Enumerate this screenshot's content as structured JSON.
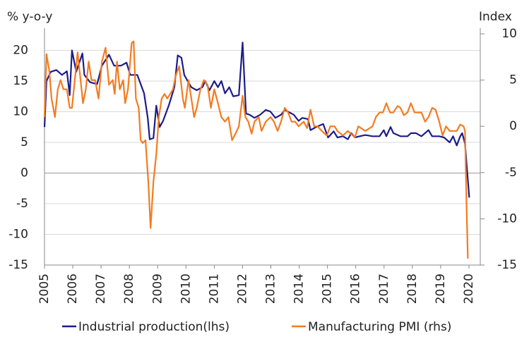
{
  "chart_data": {
    "type": "line",
    "y_label": "% y-o-y",
    "y2_label": "Index",
    "xlim": [
      2005,
      2020.4
    ],
    "xticks": [
      2005,
      2006,
      2007,
      2008,
      2009,
      2010,
      2011,
      2012,
      2013,
      2014,
      2015,
      2016,
      2017,
      2018,
      2019,
      2020
    ],
    "ylim": [
      -15,
      22.7
    ],
    "yticks": [
      20,
      15,
      10,
      5,
      0,
      -5,
      -10,
      -15
    ],
    "y2lim": [
      -15,
      10
    ],
    "y2ticks": [
      10,
      5,
      0,
      -5,
      -10,
      -15
    ],
    "grid": true,
    "legend": "bottom",
    "series": [
      {
        "name": "Industrial production(lhs)",
        "color": "#1c1c8c",
        "x": [
          2005.0,
          2005.07,
          2005.22,
          2005.42,
          2005.62,
          2005.79,
          2005.89,
          2005.97,
          2006.12,
          2006.34,
          2006.41,
          2006.61,
          2006.86,
          2007.03,
          2007.28,
          2007.46,
          2007.7,
          2007.9,
          2008.03,
          2008.28,
          2008.52,
          2008.65,
          2008.72,
          2008.85,
          2008.95,
          2009.07,
          2009.19,
          2009.39,
          2009.59,
          2009.71,
          2009.84,
          2009.94,
          2010.06,
          2010.19,
          2010.38,
          2010.58,
          2010.68,
          2010.83,
          2011.0,
          2011.13,
          2011.25,
          2011.38,
          2011.53,
          2011.67,
          2011.87,
          2012.0,
          2012.12,
          2012.25,
          2012.42,
          2012.62,
          2012.82,
          2012.99,
          2013.16,
          2013.36,
          2013.49,
          2013.61,
          2013.81,
          2013.98,
          2014.11,
          2014.31,
          2014.4,
          2014.6,
          2014.85,
          2015.02,
          2015.22,
          2015.35,
          2015.55,
          2015.72,
          2015.84,
          2015.97,
          2016.14,
          2016.34,
          2016.59,
          2016.84,
          2016.99,
          2017.08,
          2017.23,
          2017.33,
          2017.58,
          2017.83,
          2017.95,
          2018.13,
          2018.32,
          2018.57,
          2018.7,
          2018.95,
          2019.12,
          2019.32,
          2019.44,
          2019.57,
          2019.69,
          2019.76,
          2019.86,
          2020.01
        ],
        "values": [
          7.5,
          15,
          16.5,
          16.8,
          16,
          16.6,
          12.7,
          20,
          16.5,
          19.5,
          16,
          14.8,
          14.5,
          17.5,
          19.3,
          17.5,
          17.5,
          18,
          16,
          16,
          13,
          9,
          5.5,
          5.7,
          11,
          7.5,
          8.5,
          11,
          14,
          19.2,
          18.8,
          16,
          15,
          14,
          13.5,
          14,
          15,
          13.5,
          15,
          14,
          15,
          13,
          14,
          12.5,
          12.7,
          21.3,
          9.7,
          9.5,
          9,
          9.5,
          10.3,
          10,
          9,
          9.5,
          10.3,
          10,
          9.5,
          8.5,
          9,
          8.8,
          7,
          7.5,
          8,
          5.8,
          6.8,
          5.8,
          6,
          5.5,
          6.5,
          5.8,
          6,
          6.2,
          6,
          6,
          7,
          6,
          7.5,
          6.5,
          6,
          6,
          6.5,
          6.5,
          6,
          7,
          6,
          6,
          5.8,
          5,
          6,
          4.5,
          6,
          6.5,
          4.8,
          -4
        ]
      },
      {
        "name": "Manufacturing PMI (rhs)",
        "color": "#f47b20",
        "axis": "y2",
        "x": [
          2005.0,
          2005.07,
          2005.17,
          2005.25,
          2005.37,
          2005.47,
          2005.57,
          2005.67,
          2005.79,
          2005.89,
          2005.97,
          2006.07,
          2006.17,
          2006.24,
          2006.36,
          2006.46,
          2006.56,
          2006.66,
          2006.79,
          2006.91,
          2007.03,
          2007.16,
          2007.28,
          2007.41,
          2007.48,
          2007.56,
          2007.66,
          2007.78,
          2007.85,
          2007.95,
          2008.08,
          2008.15,
          2008.23,
          2008.33,
          2008.4,
          2008.47,
          2008.57,
          2008.67,
          2008.75,
          2008.85,
          2008.95,
          2009.04,
          2009.14,
          2009.24,
          2009.34,
          2009.44,
          2009.54,
          2009.64,
          2009.76,
          2009.89,
          2009.96,
          2010.09,
          2010.19,
          2010.29,
          2010.38,
          2010.51,
          2010.63,
          2010.76,
          2010.88,
          2011.0,
          2011.13,
          2011.25,
          2011.38,
          2011.5,
          2011.63,
          2011.75,
          2011.87,
          2012.0,
          2012.1,
          2012.2,
          2012.32,
          2012.42,
          2012.57,
          2012.67,
          2012.82,
          2012.99,
          2013.11,
          2013.24,
          2013.36,
          2013.49,
          2013.61,
          2013.73,
          2013.86,
          2013.98,
          2014.16,
          2014.28,
          2014.4,
          2014.53,
          2014.65,
          2014.8,
          2014.98,
          2015.1,
          2015.25,
          2015.35,
          2015.55,
          2015.72,
          2015.97,
          2016.09,
          2016.34,
          2016.59,
          2016.71,
          2016.84,
          2016.96,
          2017.08,
          2017.21,
          2017.33,
          2017.48,
          2017.58,
          2017.7,
          2017.83,
          2017.95,
          2018.08,
          2018.2,
          2018.32,
          2018.45,
          2018.57,
          2018.7,
          2018.82,
          2018.95,
          2019.07,
          2019.19,
          2019.32,
          2019.44,
          2019.57,
          2019.69,
          2019.81,
          2019.86,
          2019.91,
          2019.96
        ],
        "values": [
          1,
          7.8,
          6,
          3,
          1,
          4,
          5,
          4,
          4,
          2,
          2,
          5,
          8,
          6,
          2.5,
          4,
          7,
          5,
          5,
          3,
          7,
          8.5,
          4.5,
          5,
          3.5,
          7,
          4,
          5,
          2.5,
          4,
          9,
          9.2,
          3,
          2,
          -1.5,
          -1.8,
          -1.5,
          -6,
          -11,
          -6,
          -3,
          1,
          3,
          3.5,
          3,
          3.5,
          4,
          5.5,
          6.5,
          3,
          2,
          5,
          3,
          1,
          2,
          4,
          5,
          4.5,
          2,
          4,
          2.5,
          1,
          0.5,
          1,
          -1.5,
          -0.8,
          0,
          3.3,
          1,
          0.5,
          -0.8,
          0.5,
          1,
          -0.5,
          0.5,
          1,
          0.5,
          -0.5,
          0.5,
          2,
          1.5,
          0.5,
          0.5,
          0,
          0.5,
          -0.2,
          1.8,
          0,
          0,
          -0.5,
          -1,
          0,
          0,
          -0.5,
          -1,
          -0.5,
          -1.2,
          0,
          -0.5,
          0,
          1,
          1.5,
          1.5,
          2.5,
          1.5,
          1.5,
          2.2,
          2,
          1.2,
          1.5,
          2.5,
          1.5,
          1.5,
          1.5,
          0.5,
          1,
          2,
          1.8,
          0.5,
          -1,
          0,
          -0.5,
          -0.5,
          -0.5,
          0.2,
          0,
          -0.5,
          -8,
          -14.3
        ]
      }
    ]
  }
}
